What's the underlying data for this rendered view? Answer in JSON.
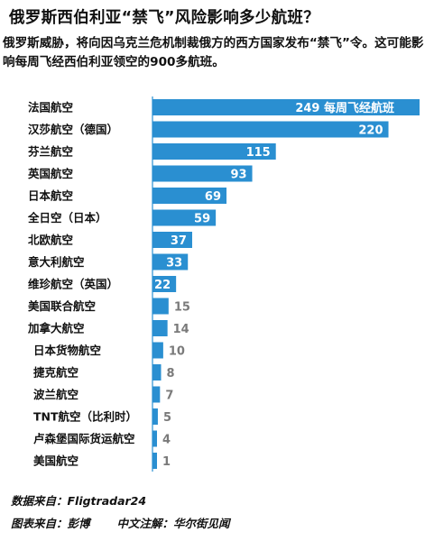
{
  "header": {
    "title": "俄罗斯西伯利亚“禁飞”风险影响多少航班？",
    "subtitle": "俄罗斯威胁，将向因乌克兰危机制裁俄方的西方国家发布“禁飞”令。这可能影响每周飞经西伯利亚领空的900多航班。"
  },
  "chart_data": {
    "type": "bar",
    "orientation": "horizontal",
    "categories": [
      "法国航空",
      "汉莎航空（德国）",
      "芬兰航空",
      "英国航空",
      "日本航空",
      "全日空（日本）",
      "北欧航空",
      "意大利航空",
      "维珍航空（英国）",
      "美国联合航空",
      "加拿大航空",
      "日本货物航空",
      "捷克航空",
      "波兰航空",
      "TNT航空（比利时）",
      "卢森堡国际货运航空",
      "美国航空"
    ],
    "values": [
      249,
      220,
      115,
      93,
      69,
      59,
      37,
      33,
      22,
      15,
      14,
      10,
      8,
      7,
      5,
      4,
      1
    ],
    "first_bar_unit_label": "每周飞经航班",
    "xlim": [
      0,
      249
    ],
    "grid": false,
    "colors": {
      "bar": "#2a8fd1",
      "value_inside": "#ffffff",
      "value_outside": "#7a7a7a"
    }
  },
  "footer": {
    "source": "数据来自：Fligtradar24",
    "chart_credit": "图表来自：彭博",
    "annotation": "中文注解：华尔街见闻"
  }
}
